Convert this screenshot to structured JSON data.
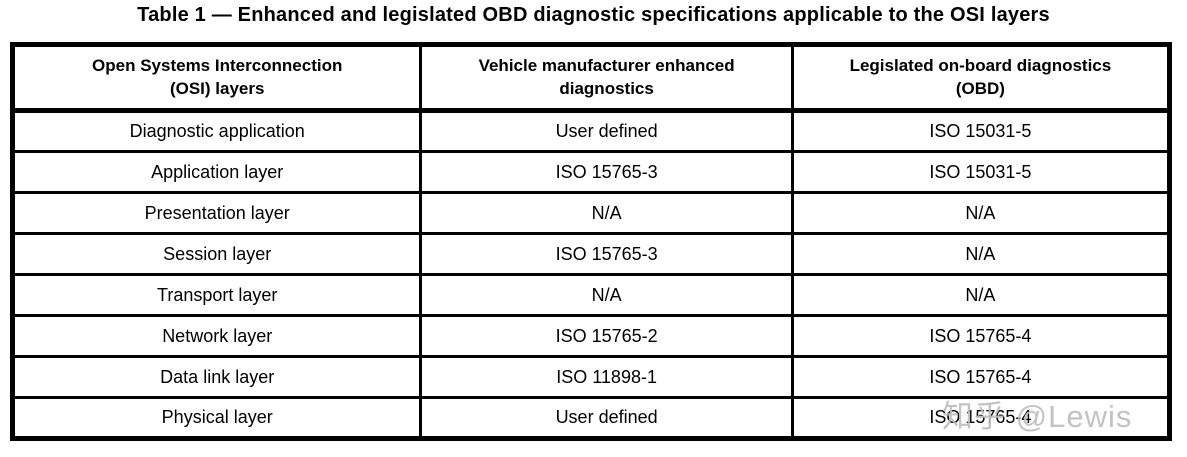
{
  "title": "Table 1 — Enhanced and legislated OBD diagnostic specifications applicable to the OSI layers",
  "watermark": "知乎 @Lewis",
  "colors": {
    "text": "#000000",
    "border": "#000000",
    "background": "#ffffff",
    "watermark": "#bdbdbd"
  },
  "table": {
    "headers": [
      "Open Systems Interconnection\n(OSI) layers",
      "Vehicle manufacturer enhanced\ndiagnostics",
      "Legislated on-board diagnostics\n(OBD)"
    ],
    "rows": [
      [
        "Diagnostic application",
        "User defined",
        "ISO 15031-5"
      ],
      [
        "Application layer",
        "ISO 15765-3",
        "ISO 15031-5"
      ],
      [
        "Presentation layer",
        "N/A",
        "N/A"
      ],
      [
        "Session layer",
        "ISO 15765-3",
        "N/A"
      ],
      [
        "Transport layer",
        "N/A",
        "N/A"
      ],
      [
        "Network layer",
        "ISO 15765-2",
        "ISO 15765-4"
      ],
      [
        "Data link layer",
        "ISO 11898-1",
        "ISO 15765-4"
      ],
      [
        "Physical layer",
        "User defined",
        "ISO 15765-4"
      ]
    ]
  }
}
